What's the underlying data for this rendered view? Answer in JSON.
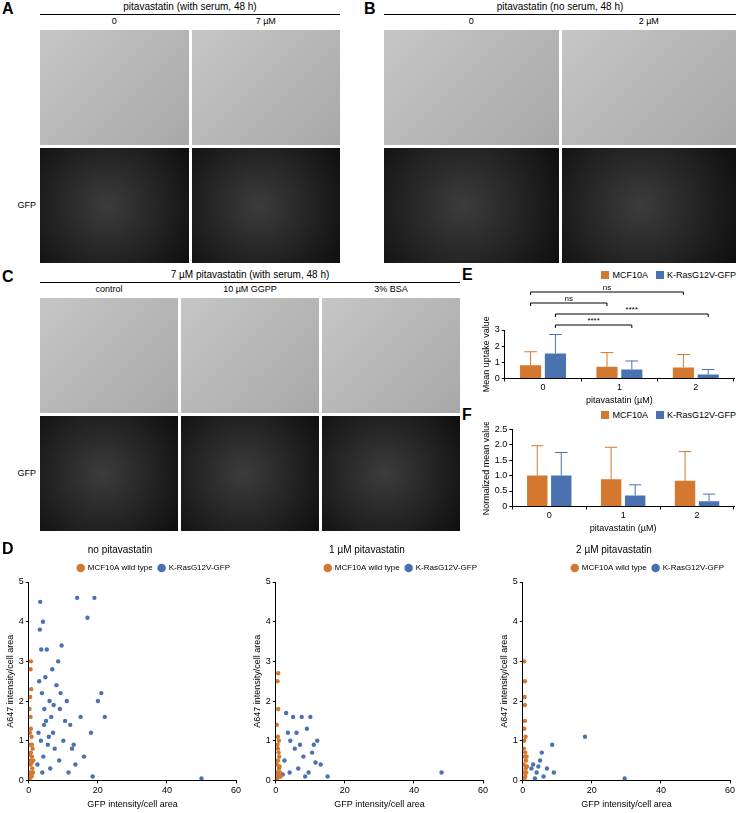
{
  "image_panels": [
    {
      "label": "A",
      "title": "pitavastatin (with serum, 48 h)",
      "columns": [
        "0",
        "7 µM"
      ],
      "row_label": "GFP"
    },
    {
      "label": "B",
      "title": "pitavastatin (no serum, 48 h)",
      "columns": [
        "0",
        "2 µM"
      ]
    },
    {
      "label": "C",
      "title": "7 µM pitavastatin (with serum, 48 h)",
      "columns": [
        "control",
        "10 µM GGPP",
        "3% BSA"
      ],
      "row_label": "GFP"
    }
  ],
  "chart_data": [
    {
      "type": "scatter",
      "panel_label": "D",
      "title": "no pitavastatin",
      "x_label": "GFP intensity/cell area",
      "y_label": "A647 intensity/cell area",
      "xlim": [
        0,
        60
      ],
      "xticks": [
        0,
        20,
        40,
        60
      ],
      "ylim": [
        0,
        5
      ],
      "yticks": [
        0,
        1,
        2,
        3,
        4,
        5
      ],
      "grid": false,
      "legend": "top-right",
      "marker": "circle",
      "series": [
        {
          "name": "MCF10A wild type",
          "color": "#d4782f",
          "x": [
            0.3,
            0.5,
            0.8,
            0.4,
            0.6,
            0.9,
            0.2,
            0.7,
            0.5,
            1.0,
            0.3,
            0.6,
            0.8,
            0.4,
            1.2,
            0.5,
            0.9,
            0.3,
            0.7,
            1.1,
            0.6,
            0.4,
            0.8,
            0.2,
            1.3
          ],
          "values": [
            0.2,
            0.4,
            0.1,
            0.9,
            1.3,
            0.6,
            1.8,
            2.3,
            2.8,
            0.3,
            0.05,
            0.7,
            1.1,
            0.5,
            0.2,
            1.6,
            0.9,
            1.2,
            0.15,
            0.8,
            3.0,
            2.1,
            0.45,
            0.65,
            0.5
          ]
        },
        {
          "name": "K-RasG12V-GFP",
          "color": "#4a72b0",
          "x": [
            3.2,
            4.1,
            3.0,
            3.8,
            4.5,
            5.0,
            2.8,
            3.5,
            6.0,
            6.5,
            5.5,
            4.2,
            7.0,
            8.0,
            9.0,
            7.5,
            10.0,
            11.0,
            12.0,
            13.0,
            15.0,
            14.0,
            17.0,
            19.0,
            18.0,
            20.0,
            21.0,
            22.0,
            16.0,
            9.5,
            8.5,
            6.8,
            5.2,
            4.8,
            3.6,
            2.5,
            3.9,
            6.2,
            8.8,
            11.5,
            13.5,
            18.5,
            5.8,
            7.2,
            4.4,
            10.5,
            12.5,
            9.2,
            50.0,
            3.3
          ],
          "values": [
            3.8,
            4.0,
            2.5,
            2.2,
            1.8,
            1.5,
            1.2,
            1.0,
            2.0,
            1.6,
            0.9,
            0.6,
            1.2,
            2.4,
            1.8,
            0.8,
            1.0,
            2.0,
            1.4,
            0.9,
            1.6,
            4.6,
            4.1,
            4.6,
            1.2,
            2.0,
            2.2,
            1.6,
            0.6,
            3.4,
            3.0,
            2.8,
            3.3,
            2.6,
            3.3,
            0.4,
            0.2,
            0.3,
            0.5,
            0.2,
            0.4,
            0.1,
            1.1,
            1.9,
            1.4,
            1.5,
            0.8,
            2.2,
            0.05,
            4.5
          ]
        }
      ]
    },
    {
      "type": "scatter",
      "title": "1 µM pitavastatin",
      "x_label": "GFP intensity/cell area",
      "y_label": "A647 intensity/cell area",
      "xlim": [
        0,
        60
      ],
      "xticks": [
        0,
        20,
        40,
        60
      ],
      "ylim": [
        0,
        5
      ],
      "yticks": [
        0,
        1,
        2,
        3,
        4,
        5
      ],
      "grid": false,
      "legend": "top-right",
      "marker": "circle",
      "series": [
        {
          "name": "MCF10A wild type",
          "color": "#d4782f",
          "x": [
            0.4,
            0.6,
            0.8,
            0.5,
            0.3,
            0.9,
            0.7,
            0.5,
            1.0,
            0.4,
            0.6,
            1.2,
            0.8,
            0.3,
            0.7,
            1.1,
            0.5,
            0.9,
            0.6,
            1.4
          ],
          "values": [
            0.2,
            0.5,
            0.1,
            0.9,
            1.4,
            0.3,
            2.7,
            2.5,
            0.6,
            0.05,
            1.1,
            0.2,
            0.7,
            0.4,
            1.8,
            0.35,
            0.15,
            1.0,
            0.8,
            0.1
          ]
        },
        {
          "name": "K-RasG12V-GFP",
          "color": "#4a72b0",
          "x": [
            3.0,
            5.0,
            4.2,
            6.0,
            7.5,
            9.0,
            10.0,
            11.0,
            12.0,
            8.0,
            6.5,
            4.0,
            2.5,
            13.0,
            15.0,
            9.5,
            11.5,
            5.5,
            3.5,
            7.0,
            2.0,
            48.0,
            8.5,
            10.5
          ],
          "values": [
            1.7,
            1.6,
            1.0,
            1.2,
            1.6,
            1.3,
            1.6,
            0.9,
            1.0,
            0.6,
            0.3,
            0.2,
            0.5,
            0.4,
            0.1,
            0.2,
            0.45,
            0.8,
            1.2,
            0.9,
            0.15,
            0.2,
            0.1,
            0.7
          ]
        }
      ]
    },
    {
      "type": "scatter",
      "title": "2 µM pitavastatin",
      "x_label": "GFP intensity/cell area",
      "y_label": "A647 intensity/cell area",
      "xlim": [
        0,
        60
      ],
      "xticks": [
        0,
        20,
        40,
        60
      ],
      "ylim": [
        0,
        5
      ],
      "yticks": [
        0,
        1,
        2,
        3,
        4,
        5
      ],
      "grid": false,
      "legend": "top-right",
      "marker": "circle",
      "series": [
        {
          "name": "MCF10A wild type",
          "color": "#d4782f",
          "x": [
            0.3,
            0.5,
            0.7,
            0.4,
            0.6,
            0.8,
            0.5,
            0.4,
            0.9,
            0.3,
            0.6,
            1.0,
            0.7,
            0.5,
            1.2,
            0.4,
            0.8,
            0.6,
            0.3,
            1.1
          ],
          "values": [
            0.2,
            0.6,
            0.1,
            1.0,
            1.5,
            0.3,
            2.1,
            3.0,
            0.5,
            0.8,
            1.9,
            0.2,
            0.7,
            0.05,
            0.35,
            1.3,
            1.1,
            2.5,
            0.4,
            0.6
          ]
        },
        {
          "name": "K-RasG12V-GFP",
          "color": "#4a72b0",
          "x": [
            3.0,
            4.0,
            5.0,
            6.0,
            7.0,
            8.5,
            2.5,
            3.5,
            9.0,
            18.0,
            29.5,
            5.5,
            4.5
          ],
          "values": [
            0.4,
            0.2,
            0.5,
            0.1,
            0.3,
            0.9,
            0.3,
            0.05,
            0.2,
            1.1,
            0.05,
            0.7,
            0.35
          ]
        }
      ]
    },
    {
      "type": "bar",
      "panel_label": "E",
      "x_label": "pitavastatin (µM)",
      "y_label": "Mean uptake value",
      "categories": [
        "0",
        "1",
        "2"
      ],
      "series": [
        {
          "name": "MCF10A",
          "color": "#d4782f",
          "values": [
            0.82,
            0.72,
            0.68
          ],
          "errors": [
            0.83,
            0.88,
            0.8
          ]
        },
        {
          "name": "K-RasG12V-GFP",
          "color": "#4a72b0",
          "values": [
            1.55,
            0.55,
            0.24
          ],
          "errors": [
            1.17,
            0.53,
            0.31
          ]
        }
      ],
      "ylim": [
        0,
        3
      ],
      "yticks": [
        0,
        1,
        2,
        3
      ],
      "grid": false,
      "legend": "top-right",
      "annotations": [
        {
          "text": "ns",
          "series": "MCF10A",
          "from": "0",
          "to": "2"
        },
        {
          "text": "ns",
          "series": "MCF10A",
          "from": "0",
          "to": "1"
        },
        {
          "text": "****",
          "series": "K-RasG12V-GFP",
          "from": "0",
          "to": "2"
        },
        {
          "text": "****",
          "series": "K-RasG12V-GFP",
          "from": "0",
          "to": "1"
        }
      ]
    },
    {
      "type": "bar",
      "panel_label": "F",
      "x_label": "pitavastatin (µM)",
      "y_label": "Normalized mean value",
      "categories": [
        "0",
        "1",
        "2"
      ],
      "series": [
        {
          "name": "MCF10A",
          "color": "#d4782f",
          "values": [
            1.0,
            0.88,
            0.83
          ],
          "errors": [
            0.97,
            1.04,
            0.95
          ]
        },
        {
          "name": "K-RasG12V-GFP",
          "color": "#4a72b0",
          "values": [
            1.0,
            0.35,
            0.17
          ],
          "errors": [
            0.75,
            0.35,
            0.23
          ]
        }
      ],
      "ylim": [
        0,
        2.5
      ],
      "yticks": [
        0,
        0.5,
        {
          "value": 1,
          "label": "1.0"
        },
        1.5,
        {
          "value": 2,
          "label": "2.0"
        },
        2.5
      ],
      "grid": false,
      "legend": "top-right"
    }
  ]
}
